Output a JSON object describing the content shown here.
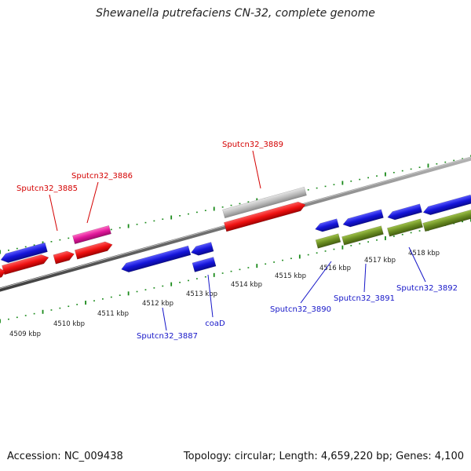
{
  "title": "Shewanella putrefaciens CN-32, complete genome",
  "footer": {
    "accession": "Accession: NC_009438",
    "summary": "Topology: circular; Length: 4,659,220 bp; Genes: 4,100"
  },
  "colors": {
    "forward_cds": "#ee1111",
    "reverse_cds": "#1414d8",
    "pseudo": "#bdbdbd",
    "rna": "#e0179a",
    "reverse_other": "#6b8e23",
    "ruler_ticks": "#1a8a1a",
    "backbone": "#777777",
    "label_forward": "#d40000",
    "label_reverse": "#1616c8"
  },
  "ruler": {
    "unit": "kbp",
    "ticks": [
      "4509 kbp",
      "4510 kbp",
      "4511 kbp",
      "4512 kbp",
      "4513 kbp",
      "4514 kbp",
      "4515 kbp",
      "4516 kbp",
      "4517 kbp",
      "4518 kbp"
    ]
  },
  "labels": {
    "forward": [
      "Sputcn32_3885",
      "Sputcn32_3886",
      "Sputcn32_3889"
    ],
    "reverse": [
      "Sputcn32_3887",
      "coaD",
      "Sputcn32_3890",
      "Sputcn32_3891",
      "Sputcn32_3892"
    ]
  }
}
